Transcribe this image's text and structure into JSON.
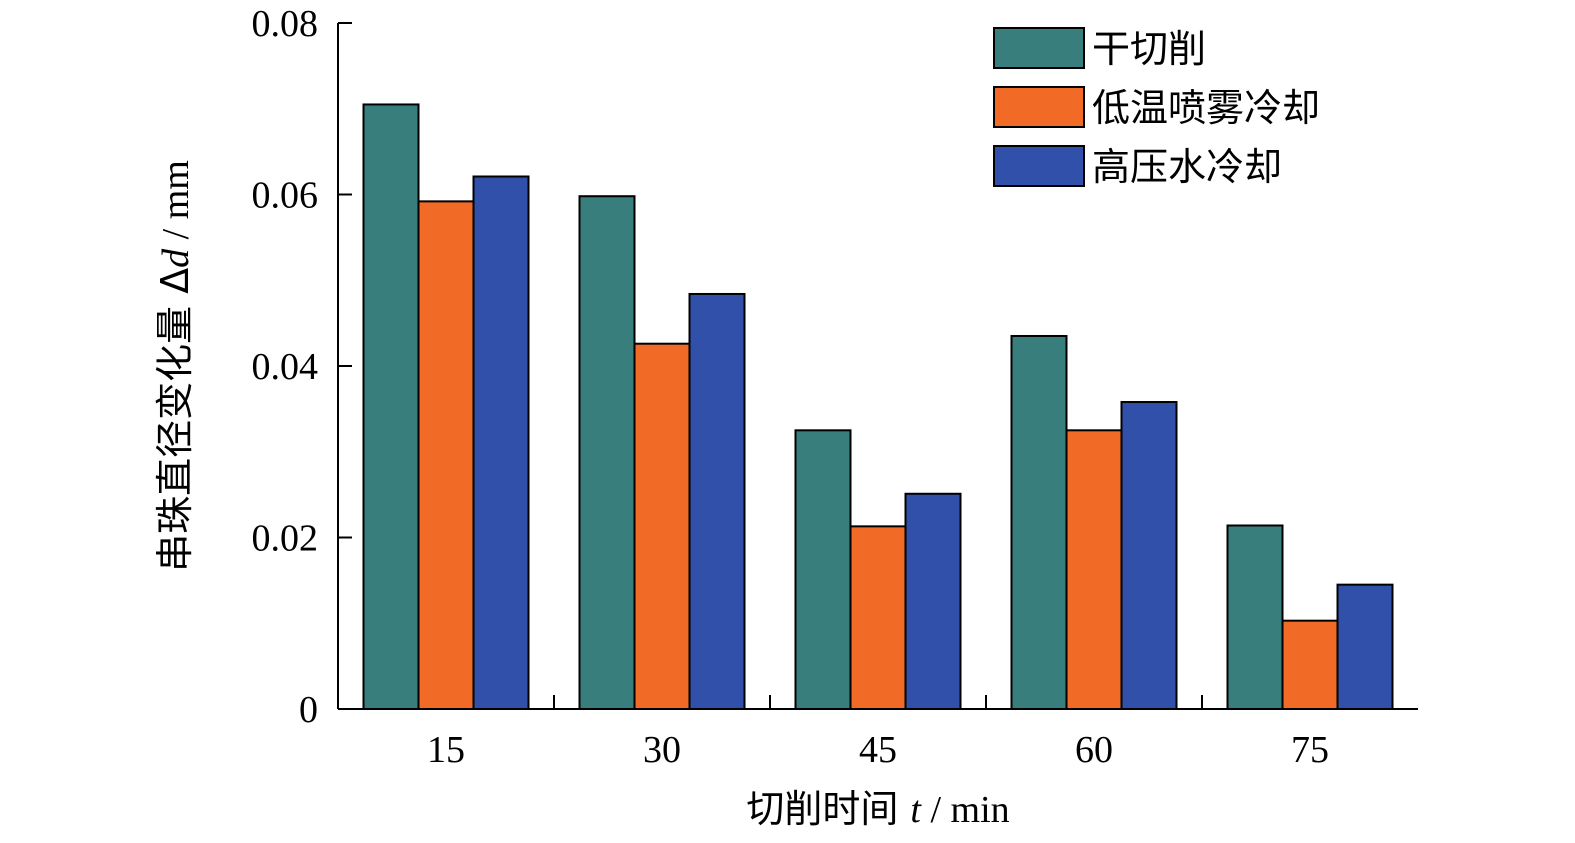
{
  "chart_data": {
    "type": "bar",
    "xlabel_prefix": "切削时间 ",
    "xlabel_var": "t",
    "xlabel_unit": " / min",
    "ylabel_prefix": "串珠直径变化量 Δ",
    "ylabel_var": "d",
    "ylabel_unit": " / mm",
    "categories": [
      "15",
      "30",
      "45",
      "60",
      "75"
    ],
    "ylim": [
      0,
      0.08
    ],
    "yticks": [
      0,
      0.02,
      0.04,
      0.06,
      0.08
    ],
    "ytick_labels": [
      "0",
      "0.02",
      "0.04",
      "0.06",
      "0.08"
    ],
    "legend_position": "top-right",
    "series": [
      {
        "name": "干切削",
        "color": "#377e7d",
        "values": [
          0.0705,
          0.0598,
          0.0325,
          0.0435,
          0.0214
        ]
      },
      {
        "name": "低温喷雾冷却",
        "color": "#f26b26",
        "values": [
          0.0592,
          0.0426,
          0.0213,
          0.0325,
          0.0103
        ]
      },
      {
        "name": "高压水冷却",
        "color": "#3150a9",
        "values": [
          0.0621,
          0.0484,
          0.0251,
          0.0358,
          0.0145
        ]
      }
    ]
  }
}
